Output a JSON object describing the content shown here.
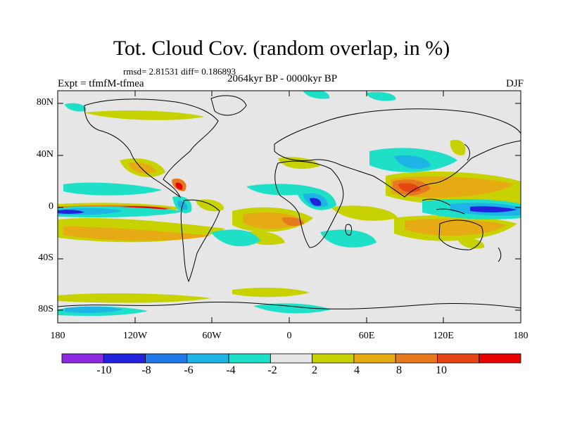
{
  "title": "Tot. Cloud Cov. (random overlap, in %)",
  "stats_line": "rmsd= 2.81531  diff= 0.186893",
  "experiment_label": "Expt = tfmfM-tfmea",
  "period_label": "2064kyr BP - 0000kyr BP",
  "season_label": "DJF",
  "map": {
    "projection": "cylindrical-equidistant",
    "lon_range": [
      -180,
      180
    ],
    "lat_range": [
      -90,
      90
    ],
    "background_color": "#e6e6e6",
    "coastline_color": "#000000",
    "y_ticks": [
      "80N",
      "40N",
      "0",
      "40S",
      "80S"
    ],
    "x_ticks": [
      "180",
      "120W",
      "60W",
      "0",
      "60E",
      "120E",
      "180"
    ]
  },
  "colorbar": {
    "colors": [
      "#8a2be2",
      "#2222dd",
      "#1e78e6",
      "#1eb4e6",
      "#1ee0c8",
      "#e6e6e6",
      "#c8d200",
      "#e6aa14",
      "#e6781e",
      "#e64614",
      "#e60000"
    ],
    "labels": [
      "-10",
      "-8",
      "-6",
      "-4",
      "-2",
      "2",
      "4",
      "8",
      "10"
    ]
  }
}
